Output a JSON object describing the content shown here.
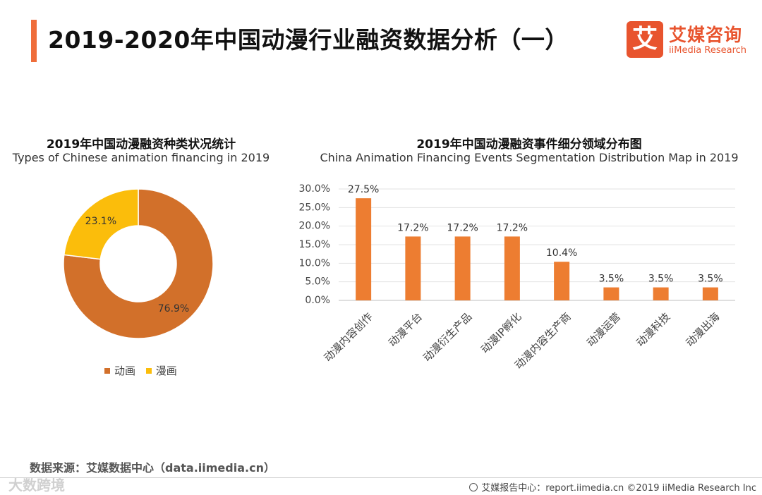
{
  "header": {
    "title": "2019-2020年中国动漫行业融资数据分析（一）",
    "logo_glyph": "艾",
    "logo_cn": "艾媒咨询",
    "logo_en": "iiMedia Research",
    "accent_color": "#ef6d3a"
  },
  "chart_data": [
    {
      "type": "pie",
      "title": "2019年中国动漫融资种类状况统计",
      "subtitle": "Types of Chinese animation financing in 2019",
      "donut": true,
      "slices": [
        {
          "label": "动画",
          "value": 76.9,
          "display": "76.9%",
          "color": "#d2702a"
        },
        {
          "label": "漫画",
          "value": 23.1,
          "display": "23.1%",
          "color": "#fbbd0b"
        }
      ],
      "legend_position": "bottom"
    },
    {
      "type": "bar",
      "title": "2019年中国动漫融资事件细分领域分布图",
      "subtitle": "China Animation Financing Events Segmentation Distribution Map in 2019",
      "categories": [
        "动漫内容创作",
        "动漫平台",
        "动漫衍生产品",
        "动漫IP孵化",
        "动漫内容生产商",
        "动漫运营",
        "动漫科技",
        "动漫出海"
      ],
      "values": [
        27.5,
        17.2,
        17.2,
        17.2,
        10.4,
        3.5,
        3.5,
        3.5
      ],
      "value_labels": [
        "27.5%",
        "17.2%",
        "17.2%",
        "17.2%",
        "10.4%",
        "3.5%",
        "3.5%",
        "3.5%"
      ],
      "ylim": [
        0,
        30
      ],
      "yticks": [
        0,
        5,
        10,
        15,
        20,
        25,
        30
      ],
      "ytick_labels": [
        "0.0%",
        "5.0%",
        "10.0%",
        "15.0%",
        "20.0%",
        "25.0%",
        "30.0%"
      ],
      "bar_color": "#ed7d31",
      "grid": true,
      "xlabel": "",
      "ylabel": ""
    }
  ],
  "legend": {
    "items": [
      {
        "label": "动画",
        "color": "#d2702a"
      },
      {
        "label": "漫画",
        "color": "#fbbd0b"
      }
    ]
  },
  "source": "数据来源：艾媒数据中心（data.iimedia.cn）",
  "watermark": "大数跨境",
  "footer": "艾媒报告中心：report.iimedia.cn  ©2019  iiMedia Research  Inc"
}
